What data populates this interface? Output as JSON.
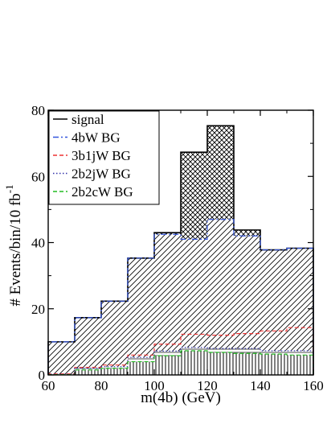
{
  "chart_data": {
    "type": "histogram",
    "title": "",
    "xlabel": "m(4b) (GeV)",
    "ylabel": "# Events/bin/10 fb",
    "ylabel_superscript": "-1",
    "xlim": [
      60,
      160
    ],
    "ylim": [
      0,
      80
    ],
    "x_ticks": [
      "60",
      "80",
      "100",
      "120",
      "140",
      "160"
    ],
    "y_ticks": [
      "0",
      "20",
      "40",
      "60",
      "80"
    ],
    "grid": false,
    "legend_position": "top-left",
    "bin_edges": [
      60,
      70,
      80,
      90,
      100,
      110,
      120,
      130,
      140,
      150,
      160
    ],
    "series": [
      {
        "name": "signal",
        "color": "#000000",
        "dash": "solid",
        "hatch": "crosshatch",
        "values": [
          10,
          17.3,
          22.3,
          35.3,
          43,
          67.3,
          75.3,
          43.8,
          37.8,
          38.3
        ]
      },
      {
        "name": "4bW BG",
        "color": "#3355dd",
        "dash": "dashdot",
        "hatch": "diagonal",
        "values": [
          10,
          17.3,
          22.3,
          35.3,
          42.5,
          41,
          47,
          42,
          37.8,
          38.3
        ]
      },
      {
        "name": "3b1jW BG",
        "color": "#ee3333",
        "dash": "dash",
        "hatch": "diagonal",
        "values": [
          0.3,
          2.3,
          3,
          6,
          9.3,
          12.3,
          12,
          12.5,
          13.3,
          14.3
        ]
      },
      {
        "name": "2b2jW BG",
        "color": "#3333aa",
        "dash": "dot",
        "hatch": "horizontal",
        "values": [
          0.2,
          2,
          2.5,
          5.3,
          7.2,
          8.3,
          8,
          8,
          7.3,
          7.3
        ]
      },
      {
        "name": "2b2cW BG",
        "color": "#22bb22",
        "dash": "dash",
        "hatch": "vertical",
        "values": [
          0.1,
          1.5,
          2,
          4,
          5.8,
          7.3,
          6.8,
          6.5,
          6.3,
          6
        ]
      }
    ]
  }
}
